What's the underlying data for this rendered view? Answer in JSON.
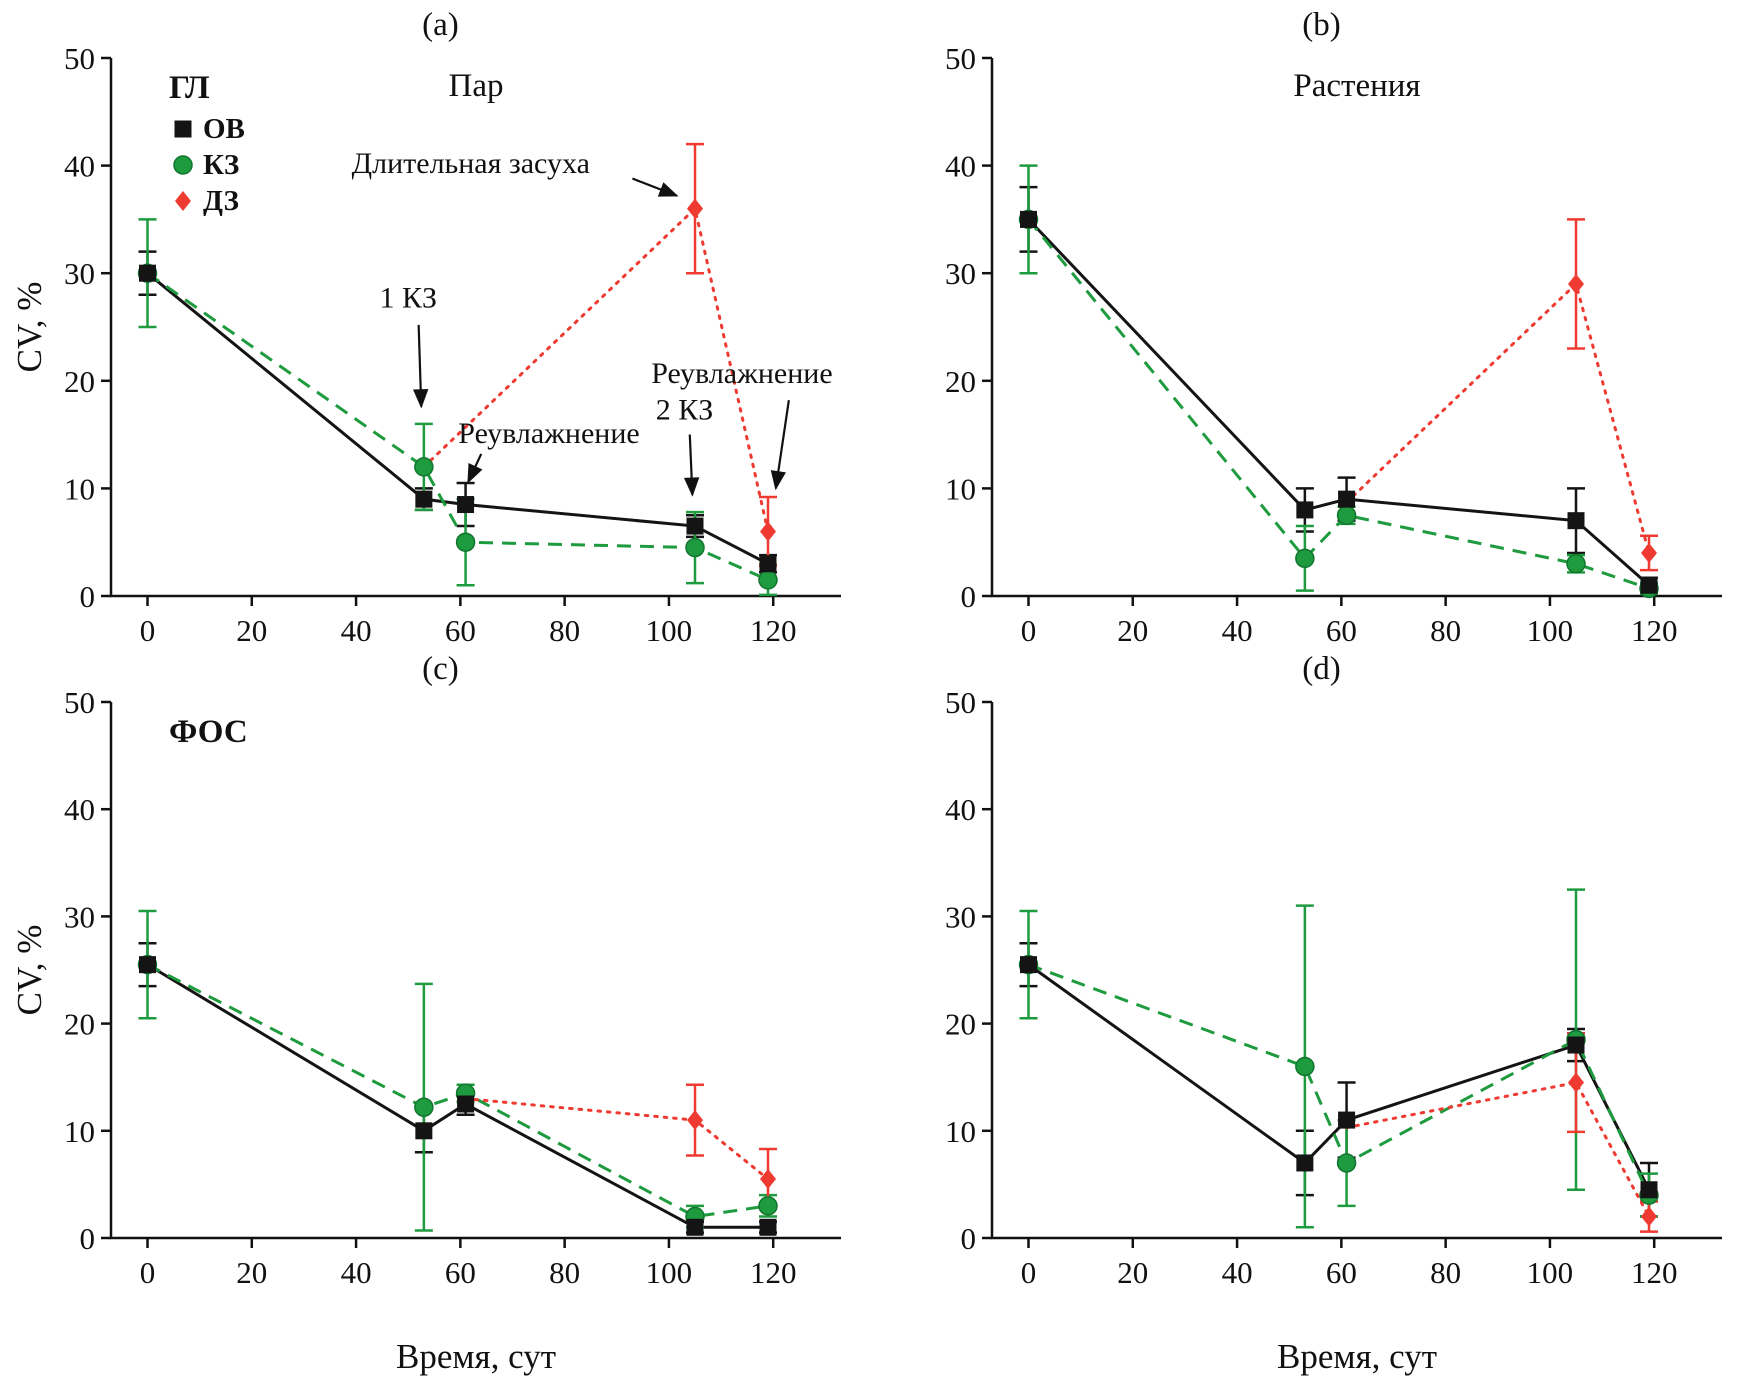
{
  "figure": {
    "ylabel": "CV, %",
    "xlabel": "Время, сут"
  },
  "chart_data": [
    {
      "type": "line",
      "panel_label": "(a)",
      "title": "Пар",
      "corner_label": "ГЛ",
      "legend": true,
      "ylabel": "CV, %",
      "xlabel": "",
      "xlim": [
        -7,
        133
      ],
      "ylim": [
        0,
        50
      ],
      "xticks": [
        0,
        20,
        40,
        60,
        80,
        100,
        120
      ],
      "yticks": [
        0,
        10,
        20,
        30,
        40,
        50
      ],
      "series": [
        {
          "name": "ОВ",
          "color": "#141414",
          "marker": "square",
          "line": "solid",
          "points": [
            {
              "x": 0,
              "y": 30,
              "e": 2
            },
            {
              "x": 53,
              "y": 9,
              "e": 1
            },
            {
              "x": 61,
              "y": 8.5,
              "e": 2
            },
            {
              "x": 105,
              "y": 6.5,
              "e": 1
            },
            {
              "x": 119,
              "y": 3,
              "e": 0.8
            }
          ]
        },
        {
          "name": "КЗ",
          "color": "#1e9b3e",
          "marker": "circle",
          "line": "dashed",
          "points": [
            {
              "x": 0,
              "y": 30,
              "e": 5
            },
            {
              "x": 53,
              "y": 12,
              "e": 4
            },
            {
              "x": 61,
              "y": 5,
              "e": 4
            },
            {
              "x": 105,
              "y": 4.5,
              "e": 3.3
            },
            {
              "x": 119,
              "y": 1.5,
              "e": 1.4
            }
          ]
        },
        {
          "name": "ДЗ",
          "color": "#ee3a30",
          "marker": "diamond",
          "line": "dotted",
          "points": [
            {
              "x": 53,
              "y": 12,
              "nm": true
            },
            {
              "x": 105,
              "y": 36,
              "e": 6
            },
            {
              "x": 119,
              "y": 6,
              "e": 3.2
            }
          ]
        }
      ],
      "annotations": [
        {
          "text": "Длительная засуха",
          "x": 62,
          "y": 39.3
        },
        {
          "text": "1 КЗ",
          "x": 50,
          "y": 26.8
        },
        {
          "text": "Реувлажнение",
          "x": 77,
          "y": 14.2
        },
        {
          "text": "Реувлажнение",
          "x": 114,
          "y": 19.8
        },
        {
          "text": "2 КЗ",
          "x": 103,
          "y": 16.4
        }
      ],
      "arrows": [
        {
          "x1": 93,
          "y1": 38.8,
          "x2": 101.5,
          "y2": 37.2
        },
        {
          "x1": 52,
          "y1": 25.2,
          "x2": 52.5,
          "y2": 17.6
        },
        {
          "x1": 64,
          "y1": 13.2,
          "x2": 61.5,
          "y2": 10.6
        },
        {
          "x1": 104,
          "y1": 15.0,
          "x2": 104.5,
          "y2": 9.4
        },
        {
          "x1": 123,
          "y1": 18.2,
          "x2": 120.5,
          "y2": 10.0
        }
      ]
    },
    {
      "type": "line",
      "panel_label": "(b)",
      "title": "Растения",
      "corner_label": "",
      "legend": false,
      "ylabel": "",
      "xlabel": "",
      "xlim": [
        -7,
        133
      ],
      "ylim": [
        0,
        50
      ],
      "xticks": [
        0,
        20,
        40,
        60,
        80,
        100,
        120
      ],
      "yticks": [
        0,
        10,
        20,
        30,
        40,
        50
      ],
      "series": [
        {
          "name": "ОВ",
          "color": "#141414",
          "marker": "square",
          "line": "solid",
          "points": [
            {
              "x": 0,
              "y": 35,
              "e": 3
            },
            {
              "x": 53,
              "y": 8,
              "e": 2
            },
            {
              "x": 61,
              "y": 9,
              "e": 2
            },
            {
              "x": 105,
              "y": 7,
              "e": 3
            },
            {
              "x": 119,
              "y": 1,
              "e": 0.7
            }
          ]
        },
        {
          "name": "КЗ",
          "color": "#1e9b3e",
          "marker": "circle",
          "line": "dashed",
          "points": [
            {
              "x": 0,
              "y": 35,
              "e": 5
            },
            {
              "x": 53,
              "y": 3.5,
              "e": 3
            },
            {
              "x": 61,
              "y": 7.5,
              "e": 0.8
            },
            {
              "x": 105,
              "y": 3,
              "e": 0.8
            },
            {
              "x": 119,
              "y": 0.7,
              "e": 0.5
            }
          ]
        },
        {
          "name": "ДЗ",
          "color": "#ee3a30",
          "marker": "diamond",
          "line": "dotted",
          "points": [
            {
              "x": 61,
              "y": 8.7,
              "nm": true
            },
            {
              "x": 105,
              "y": 29,
              "e": 6
            },
            {
              "x": 119,
              "y": 4,
              "e": 1.6
            }
          ]
        }
      ],
      "annotations": [],
      "arrows": []
    },
    {
      "type": "line",
      "panel_label": "(c)",
      "title": "",
      "corner_label": "ФОС",
      "legend": false,
      "ylabel": "CV, %",
      "xlabel": "Время, сут",
      "xlim": [
        -7,
        133
      ],
      "ylim": [
        0,
        50
      ],
      "xticks": [
        0,
        20,
        40,
        60,
        80,
        100,
        120
      ],
      "yticks": [
        0,
        10,
        20,
        30,
        40,
        50
      ],
      "series": [
        {
          "name": "ОВ",
          "color": "#141414",
          "marker": "square",
          "line": "solid",
          "points": [
            {
              "x": 0,
              "y": 25.5,
              "e": 2
            },
            {
              "x": 53,
              "y": 10,
              "e": 2
            },
            {
              "x": 61,
              "y": 12.5,
              "e": 1
            },
            {
              "x": 105,
              "y": 1,
              "e": 0.5
            },
            {
              "x": 119,
              "y": 1,
              "e": 0.5
            }
          ]
        },
        {
          "name": "КЗ",
          "color": "#1e9b3e",
          "marker": "circle",
          "line": "dashed",
          "points": [
            {
              "x": 0,
              "y": 25.5,
              "e": 5
            },
            {
              "x": 53,
              "y": 12.2,
              "e": 11.5
            },
            {
              "x": 61,
              "y": 13.5,
              "e": 0.8
            },
            {
              "x": 105,
              "y": 2,
              "e": 1
            },
            {
              "x": 119,
              "y": 3,
              "e": 1
            }
          ]
        },
        {
          "name": "ДЗ",
          "color": "#ee3a30",
          "marker": "diamond",
          "line": "dotted",
          "points": [
            {
              "x": 61,
              "y": 13,
              "nm": true
            },
            {
              "x": 105,
              "y": 11,
              "e": 3.3
            },
            {
              "x": 119,
              "y": 5.5,
              "e": 2.8
            }
          ]
        }
      ],
      "annotations": [],
      "arrows": []
    },
    {
      "type": "line",
      "panel_label": "(d)",
      "title": "",
      "corner_label": "",
      "legend": false,
      "ylabel": "",
      "xlabel": "Время, сут",
      "xlim": [
        -7,
        133
      ],
      "ylim": [
        0,
        50
      ],
      "xticks": [
        0,
        20,
        40,
        60,
        80,
        100,
        120
      ],
      "yticks": [
        0,
        10,
        20,
        30,
        40,
        50
      ],
      "series": [
        {
          "name": "ОВ",
          "color": "#141414",
          "marker": "square",
          "line": "solid",
          "points": [
            {
              "x": 0,
              "y": 25.5,
              "e": 2
            },
            {
              "x": 53,
              "y": 7,
              "e": 3
            },
            {
              "x": 61,
              "y": 11,
              "e": 3.5
            },
            {
              "x": 105,
              "y": 18,
              "e": 1.5
            },
            {
              "x": 119,
              "y": 4.5,
              "e": 2.5
            }
          ]
        },
        {
          "name": "КЗ",
          "color": "#1e9b3e",
          "marker": "circle",
          "line": "dashed",
          "points": [
            {
              "x": 0,
              "y": 25.5,
              "e": 5
            },
            {
              "x": 53,
              "y": 16,
              "e": 15
            },
            {
              "x": 61,
              "y": 7,
              "e": 4
            },
            {
              "x": 105,
              "y": 18.5,
              "e": 14
            },
            {
              "x": 119,
              "y": 4,
              "e": 2
            }
          ]
        },
        {
          "name": "ДЗ",
          "color": "#ee3a30",
          "marker": "diamond",
          "line": "dotted",
          "points": [
            {
              "x": 61,
              "y": 10.3,
              "nm": true
            },
            {
              "x": 105,
              "y": 14.5,
              "e": 4.6
            },
            {
              "x": 119,
              "y": 2,
              "e": 1.4
            }
          ]
        }
      ],
      "annotations": [],
      "arrows": []
    }
  ]
}
